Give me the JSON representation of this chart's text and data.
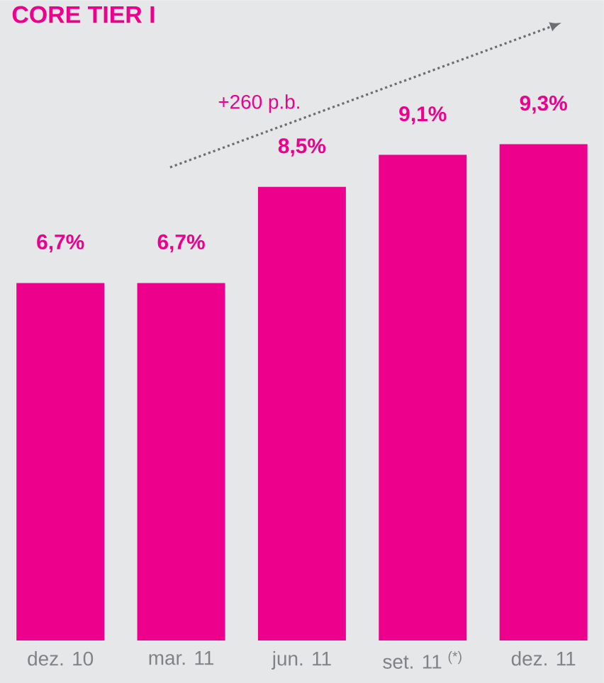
{
  "chart_data": {
    "type": "bar",
    "title": "CORE TIER I",
    "categories": [
      "dez. 10",
      "mar. 11",
      "jun. 11",
      "set. 11 $^{(*)}$",
      "dez. 11"
    ],
    "values": [
      6.7,
      6.7,
      8.5,
      9.1,
      9.3
    ],
    "value_labels": [
      "6,7%",
      "6,7%",
      "8,5%",
      "9,1%",
      "9,3%"
    ],
    "color": "#ec008c",
    "ylim": [
      0,
      12
    ],
    "annotations": [
      "+260 p.b."
    ]
  }
}
